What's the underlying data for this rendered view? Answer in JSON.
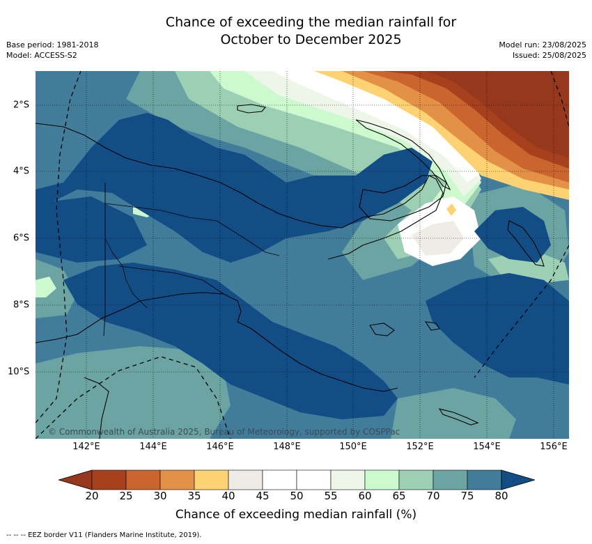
{
  "title_line1": "Chance of exceeding the median rainfall for",
  "title_line2": "October to December 2025",
  "meta_left": [
    "Base period: 1981-2018",
    "Model: ACCESS-S2"
  ],
  "meta_right": [
    "Model run: 23/08/2025",
    "Issued: 25/08/2025"
  ],
  "copyright": "© Commonwealth of Australia 2025, Bureau of Meteorology, supported by COSPPac",
  "x_ticks": [
    "142°E",
    "144°E",
    "146°E",
    "148°E",
    "150°E",
    "152°E",
    "154°E",
    "156°E"
  ],
  "y_ticks": [
    "2°S",
    "4°S",
    "6°S",
    "8°S",
    "10°S"
  ],
  "colorbar": {
    "ticks": [
      "20",
      "25",
      "30",
      "35",
      "40",
      "45",
      "50",
      "55",
      "60",
      "65",
      "70",
      "75",
      "80"
    ],
    "colors": [
      "#a7401c",
      "#cb6530",
      "#e39146",
      "#fcd273",
      "#efece6",
      "#ffffff",
      "#ffffff",
      "#edf6e8",
      "#ccf9cd",
      "#9ccfb3",
      "#6ca3a3",
      "#427c9b"
    ],
    "under_color": "#96381d",
    "over_color": "#124d86",
    "label": "Chance of exceeding median rainfall (%)"
  },
  "footnote": "--  --  -- EEZ border V11 (Flanders Marine Institute, 2019)."
}
